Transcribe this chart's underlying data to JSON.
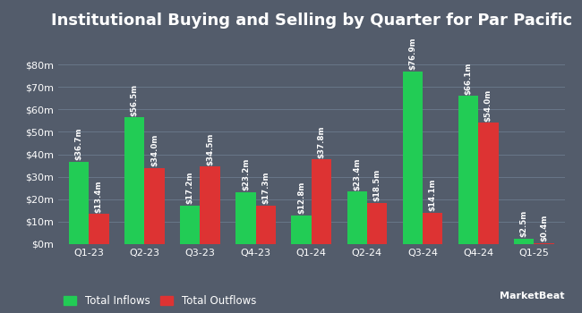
{
  "title": "Institutional Buying and Selling by Quarter for Par Pacific",
  "quarters": [
    "Q1-23",
    "Q2-23",
    "Q3-23",
    "Q4-23",
    "Q1-24",
    "Q2-24",
    "Q3-24",
    "Q4-24",
    "Q1-25"
  ],
  "inflows": [
    36.7,
    56.5,
    17.2,
    23.2,
    12.8,
    23.4,
    76.9,
    66.1,
    2.5
  ],
  "outflows": [
    13.4,
    34.0,
    34.5,
    17.3,
    37.8,
    18.5,
    14.1,
    54.0,
    0.4
  ],
  "inflow_labels": [
    "$36.7m",
    "$56.5m",
    "$17.2m",
    "$23.2m",
    "$12.8m",
    "$23.4m",
    "$76.9m",
    "$66.1m",
    "$2.5m"
  ],
  "outflow_labels": [
    "$13.4m",
    "$34.0m",
    "$34.5m",
    "$17.3m",
    "$37.8m",
    "$18.5m",
    "$14.1m",
    "$54.0m",
    "$0.4m"
  ],
  "inflow_color": "#22cc55",
  "outflow_color": "#dd3333",
  "background_color": "#535c6b",
  "text_color": "#ffffff",
  "grid_color": "#6b7a8d",
  "ylabel_ticks": [
    0,
    10,
    20,
    30,
    40,
    50,
    60,
    70,
    80
  ],
  "ylabel_labels": [
    "$0m",
    "$10m",
    "$20m",
    "$30m",
    "$40m",
    "$50m",
    "$60m",
    "$70m",
    "$80m"
  ],
  "ylim": [
    0,
    92
  ],
  "legend_inflow": "Total Inflows",
  "legend_outflow": "Total Outflows",
  "bar_width": 0.36,
  "title_fontsize": 13,
  "label_fontsize": 6.2,
  "tick_fontsize": 8,
  "legend_fontsize": 8.5
}
